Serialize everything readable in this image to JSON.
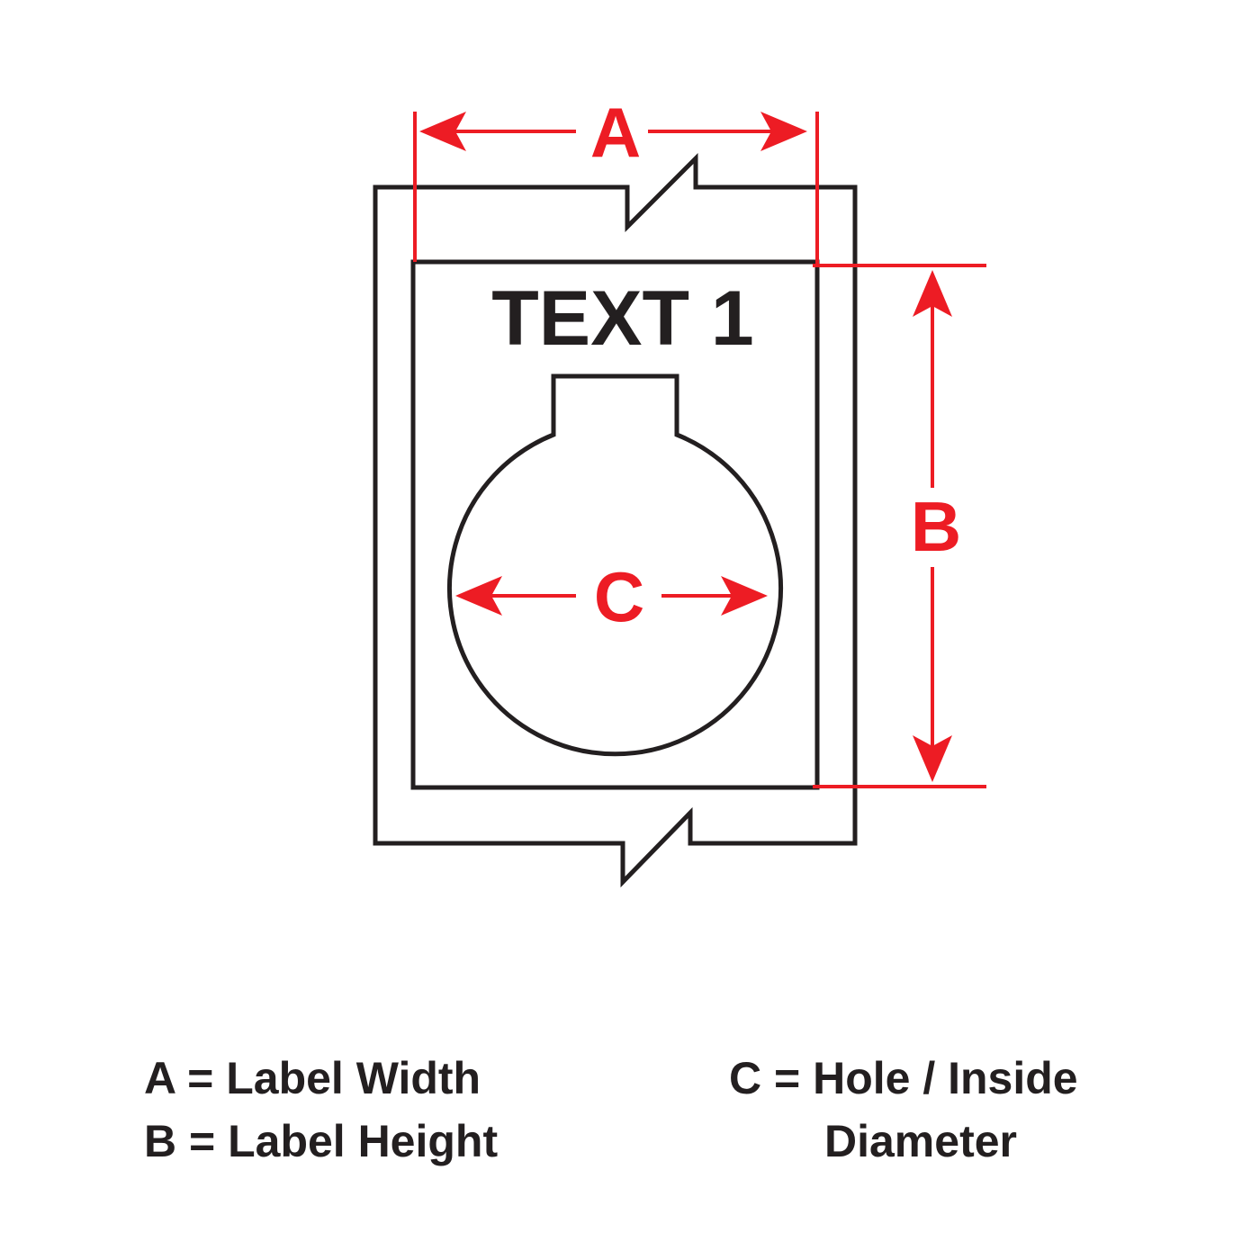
{
  "label": {
    "sample_text": "TEXT 1"
  },
  "dimensions": {
    "a": "A",
    "b": "B",
    "c": "C"
  },
  "legend": {
    "a_definition": "A = Label Width",
    "b_definition": "B = Label Height",
    "c_definition_line1": "C = Hole / Inside",
    "c_definition_line2": "Diameter"
  },
  "colors": {
    "outline": "#231f20",
    "dimension": "#ed1c24",
    "background": "#ffffff"
  }
}
